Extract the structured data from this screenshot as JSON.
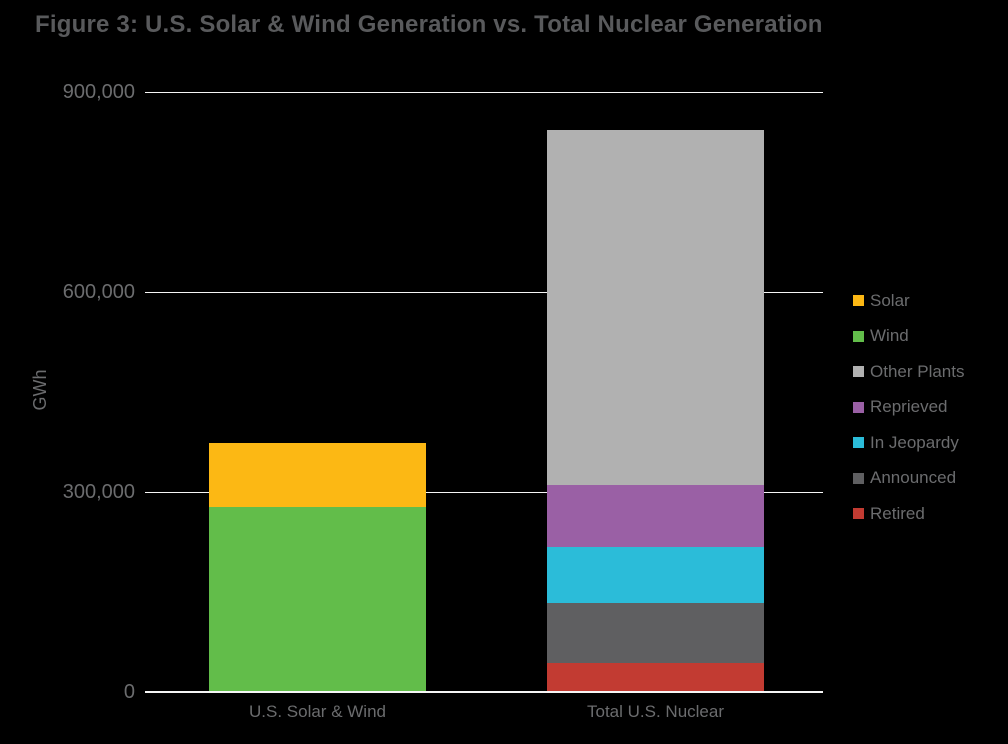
{
  "chart_data": {
    "type": "bar",
    "stacked": true,
    "title": "Figure 3: U.S. Solar & Wind Generation vs. Total Nuclear Generation",
    "ylabel": "GWh",
    "categories": [
      "U.S. Solar & Wind",
      "Total U.S. Nuclear"
    ],
    "series": [
      {
        "name": "Retired",
        "color": "#c23b32",
        "values": [
          0,
          43000
        ]
      },
      {
        "name": "Announced",
        "color": "#5f5f61",
        "values": [
          0,
          90000
        ]
      },
      {
        "name": "In Jeopardy",
        "color": "#2bbcd9",
        "values": [
          0,
          84000
        ]
      },
      {
        "name": "Reprieved",
        "color": "#9a60a5",
        "values": [
          0,
          93000
        ]
      },
      {
        "name": "Other Plants",
        "color": "#b1b1b1",
        "values": [
          0,
          533000
        ]
      },
      {
        "name": "Wind",
        "color": "#62bd4a",
        "values": [
          277000,
          0
        ]
      },
      {
        "name": "Solar",
        "color": "#fcb814",
        "values": [
          96000,
          0
        ]
      }
    ],
    "legend_order": [
      "Solar",
      "Wind",
      "Other Plants",
      "Reprieved",
      "In Jeopardy",
      "Announced",
      "Retired"
    ],
    "legend_position": "right",
    "ylim": [
      0,
      900000
    ],
    "yticks": [
      0,
      300000,
      600000,
      900000
    ],
    "ytick_labels": [
      "0",
      "300,000",
      "600,000",
      "900,000"
    ],
    "grid": true
  },
  "colors": {
    "background": "#000000",
    "title_text": "#595a5c",
    "axis_text": "#6b6c6e",
    "legend_text": "#6b6c6e",
    "gridline": "#f5f5f5"
  }
}
